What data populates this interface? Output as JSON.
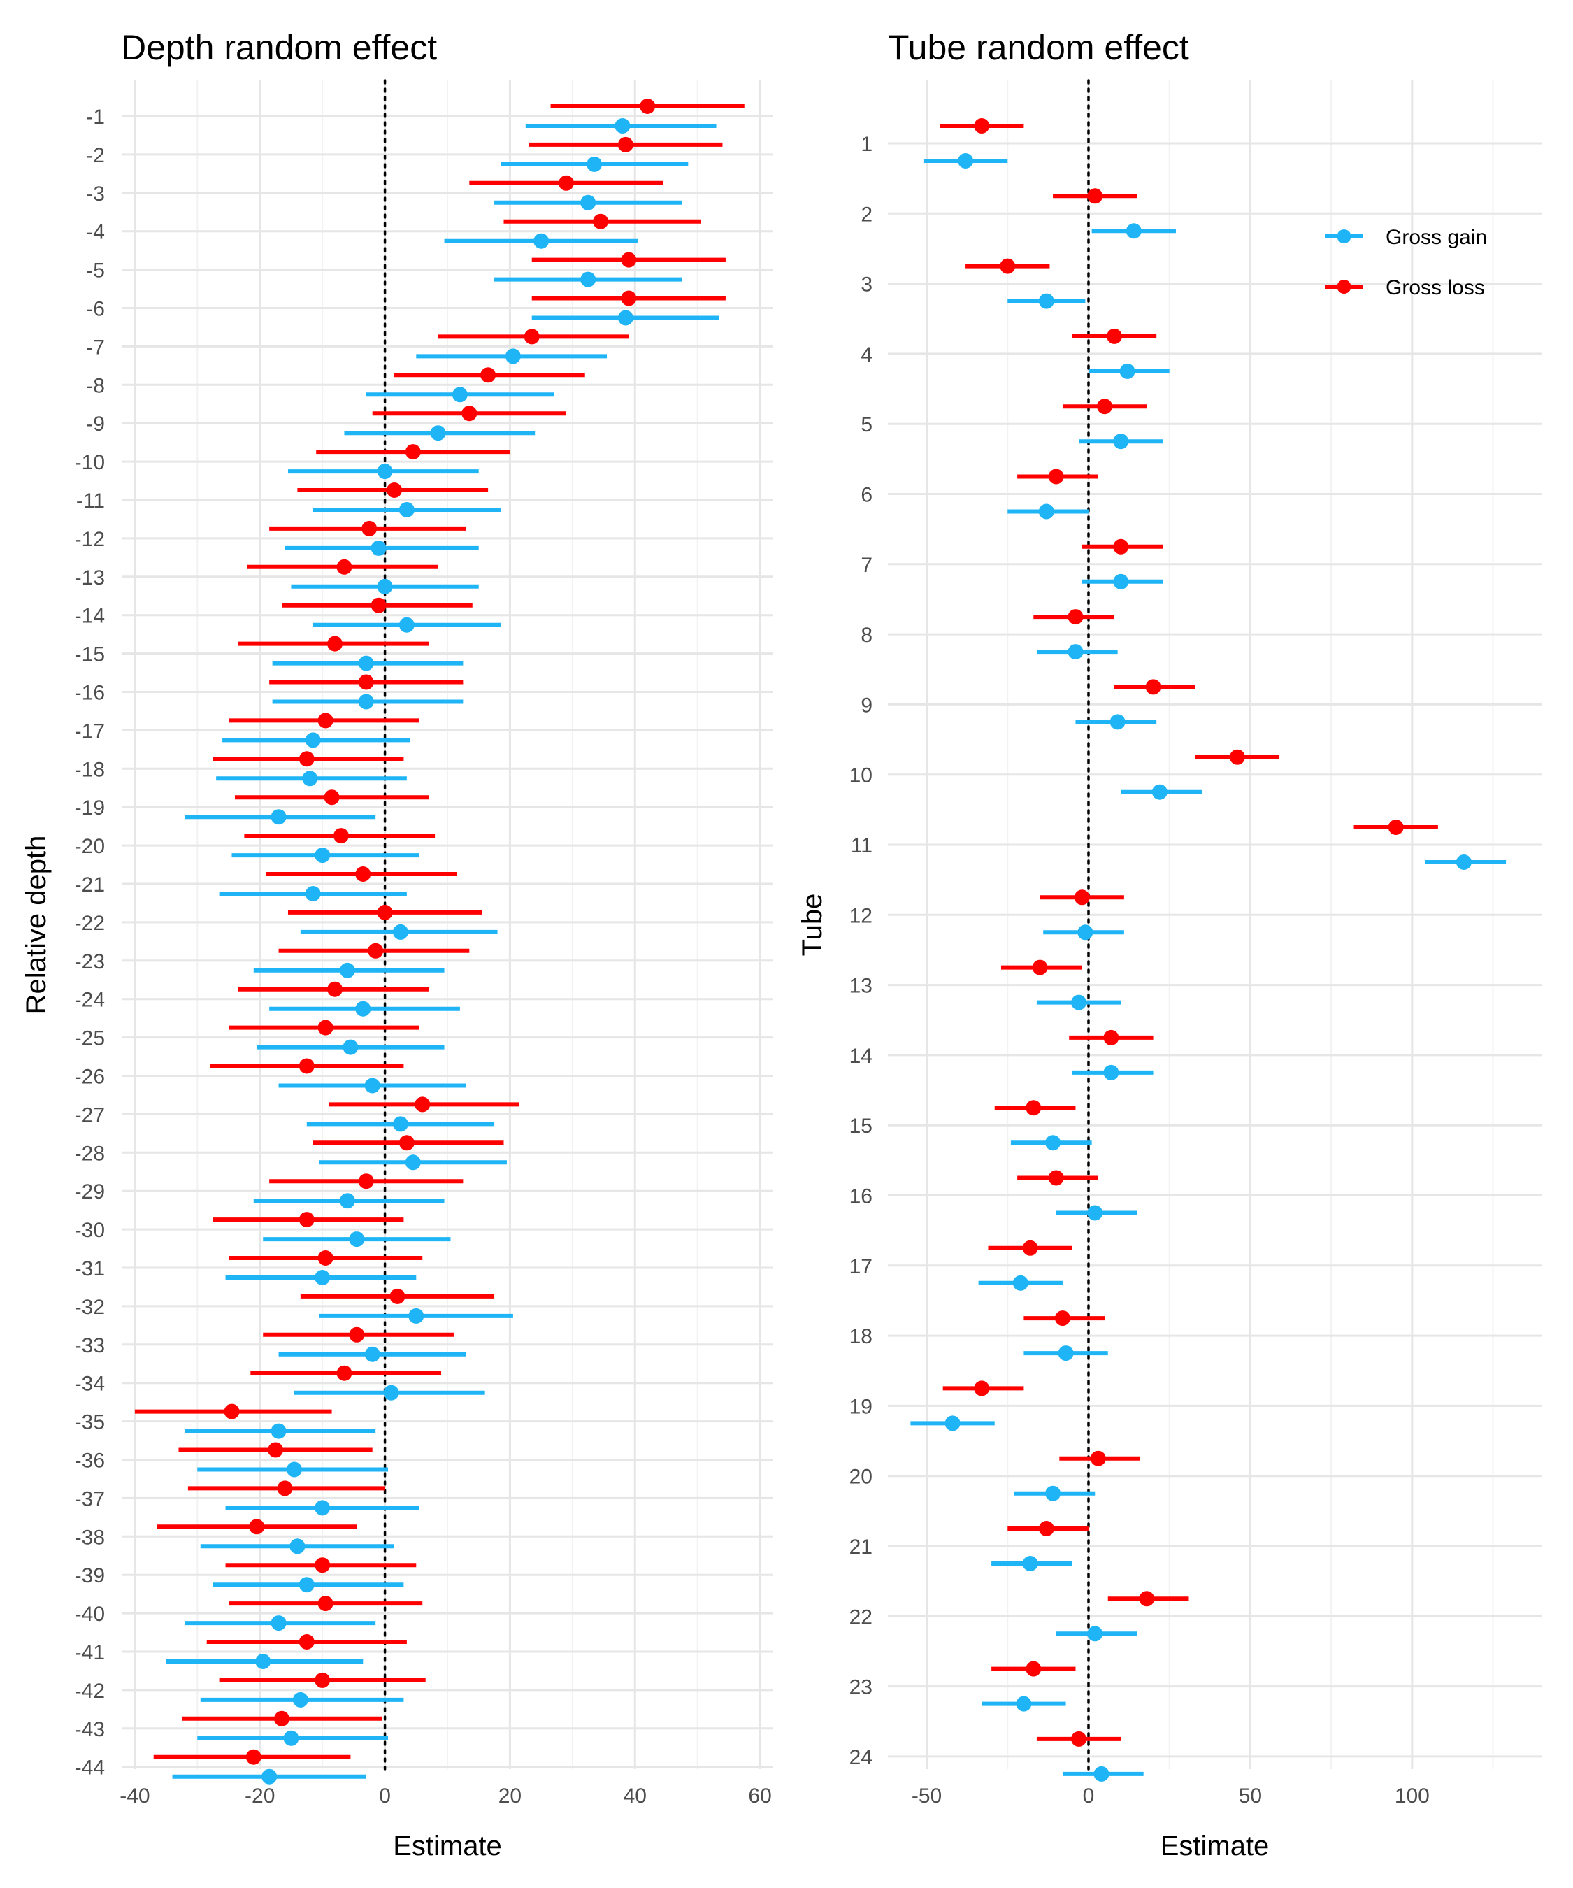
{
  "chart_data": [
    {
      "type": "forest",
      "title": "Depth random effect",
      "xlabel": "Estimate",
      "ylabel": "Relative depth",
      "xlim": [
        -42,
        62
      ],
      "xticks": [
        -40,
        -20,
        0,
        20,
        40,
        60
      ],
      "xtick_labels": [
        "-40",
        "-20",
        "0",
        "20",
        "40",
        "60"
      ],
      "reference_line": 0,
      "grid": true,
      "categories": [
        "-1",
        "-2",
        "-3",
        "-4",
        "-5",
        "-6",
        "-7",
        "-8",
        "-9",
        "-10",
        "-11",
        "-12",
        "-13",
        "-14",
        "-15",
        "-16",
        "-17",
        "-18",
        "-19",
        "-20",
        "-21",
        "-22",
        "-23",
        "-24",
        "-25",
        "-26",
        "-27",
        "-28",
        "-29",
        "-30",
        "-31",
        "-32",
        "-33",
        "-34",
        "-35",
        "-36",
        "-37",
        "-38",
        "-39",
        "-40",
        "-41",
        "-42",
        "-43",
        "-44"
      ],
      "series": [
        {
          "name": "Gross gain",
          "color": "#1eb4f5",
          "estimates": [
            38,
            33.5,
            32.5,
            25,
            32.5,
            38.5,
            20.5,
            12,
            8.5,
            0,
            3.5,
            -1,
            0,
            3.5,
            -3,
            -3,
            -11.5,
            -12,
            -17,
            -10,
            -11.5,
            2.5,
            -6,
            -3.5,
            -5.5,
            -2,
            2.5,
            4.5,
            -6,
            -4.5,
            -10,
            5,
            -2,
            1,
            -17,
            -14.5,
            -10,
            -14,
            -12.5,
            -17,
            -19.5,
            -13.5,
            -15,
            -18.5
          ],
          "lower": [
            22.5,
            18.5,
            17.5,
            9.5,
            17.5,
            23.5,
            5,
            -3,
            -6.5,
            -15.5,
            -11.5,
            -16,
            -15,
            -11.5,
            -18,
            -18,
            -26,
            -27,
            -32,
            -24.5,
            -26.5,
            -13.5,
            -21,
            -18.5,
            -20.5,
            -17,
            -12.5,
            -10.5,
            -21,
            -19.5,
            -25.5,
            -10.5,
            -17,
            -14.5,
            -32,
            -30,
            -25.5,
            -29.5,
            -27.5,
            -32,
            -35,
            -29.5,
            -30,
            -34
          ],
          "upper": [
            53,
            48.5,
            47.5,
            40.5,
            47.5,
            53.5,
            35.5,
            27,
            24,
            15,
            18.5,
            15,
            15,
            18.5,
            12.5,
            12.5,
            4,
            3.5,
            -1.5,
            5.5,
            3.5,
            18,
            9.5,
            12,
            9.5,
            13,
            17.5,
            19.5,
            9.5,
            10.5,
            5,
            20.5,
            13,
            16,
            -1.5,
            0.5,
            5.5,
            1.5,
            3,
            -1.5,
            -3.5,
            3,
            0.5,
            -3
          ]
        },
        {
          "name": "Gross loss",
          "color": "#ff0000",
          "estimates": [
            42,
            38.5,
            29,
            34.5,
            39,
            39,
            23.5,
            16.5,
            13.5,
            4.5,
            1.5,
            -2.5,
            -6.5,
            -1,
            -8,
            -3,
            -9.5,
            -12.5,
            -8.5,
            -7,
            -3.5,
            0,
            -1.5,
            -8,
            -9.5,
            -12.5,
            6,
            3.5,
            -3,
            -12.5,
            -9.5,
            2,
            -4.5,
            -6.5,
            -24.5,
            -17.5,
            -16,
            -20.5,
            -10,
            -9.5,
            -12.5,
            -10,
            -16.5,
            -21
          ],
          "lower": [
            26.5,
            23,
            13.5,
            19,
            23.5,
            23.5,
            8.5,
            1.5,
            -2,
            -11,
            -14,
            -18.5,
            -22,
            -16.5,
            -23.5,
            -18.5,
            -25,
            -27.5,
            -24,
            -22.5,
            -19,
            -15.5,
            -17,
            -23.5,
            -25,
            -28,
            -9,
            -11.5,
            -18.5,
            -27.5,
            -25,
            -13.5,
            -19.5,
            -21.5,
            -40,
            -33,
            -31.5,
            -36.5,
            -25.5,
            -25,
            -28.5,
            -26.5,
            -32.5,
            -37
          ],
          "upper": [
            57.5,
            54,
            44.5,
            50.5,
            54.5,
            54.5,
            39,
            32,
            29,
            20,
            16.5,
            13,
            8.5,
            14,
            7,
            12.5,
            5.5,
            3,
            7,
            8,
            11.5,
            15.5,
            13.5,
            7,
            5.5,
            3,
            21.5,
            19,
            12.5,
            3,
            6,
            17.5,
            11,
            9,
            -8.5,
            -2,
            0,
            -4.5,
            5,
            6,
            3.5,
            6.5,
            -0.5,
            -5.5
          ]
        }
      ]
    },
    {
      "type": "forest",
      "title": "Tube random effect",
      "xlabel": "Estimate",
      "ylabel": "Tube",
      "xlim": [
        -62,
        140
      ],
      "xticks": [
        -50,
        0,
        50,
        100
      ],
      "xtick_labels": [
        "-50",
        "0",
        "50",
        "100"
      ],
      "reference_line": 0,
      "grid": true,
      "legend_position": "top-right",
      "categories": [
        "1",
        "2",
        "3",
        "4",
        "5",
        "6",
        "7",
        "8",
        "9",
        "10",
        "11",
        "12",
        "13",
        "14",
        "15",
        "16",
        "17",
        "18",
        "19",
        "20",
        "21",
        "22",
        "23",
        "24"
      ],
      "series": [
        {
          "name": "Gross gain",
          "color": "#1eb4f5",
          "estimates": [
            -38,
            14,
            -13,
            12,
            10,
            -13,
            10,
            -4,
            9,
            22,
            116,
            -1,
            -3,
            7,
            -11,
            2,
            -21,
            -7,
            -42,
            -11,
            -18,
            2,
            -20,
            4
          ],
          "lower": [
            -51,
            1,
            -25,
            0,
            -3,
            -25,
            -2,
            -16,
            -4,
            10,
            104,
            -14,
            -16,
            -5,
            -24,
            -10,
            -34,
            -20,
            -55,
            -23,
            -30,
            -10,
            -33,
            -8
          ],
          "upper": [
            -25,
            27,
            -1,
            25,
            23,
            0,
            23,
            9,
            21,
            35,
            129,
            11,
            10,
            20,
            1,
            15,
            -8,
            6,
            -29,
            2,
            -5,
            15,
            -7,
            17
          ]
        },
        {
          "name": "Gross loss",
          "color": "#ff0000",
          "estimates": [
            -33,
            2,
            -25,
            8,
            5,
            -10,
            10,
            -4,
            20,
            46,
            95,
            -2,
            -15,
            7,
            -17,
            -10,
            -18,
            -8,
            -33,
            3,
            -13,
            18,
            -17,
            -3
          ],
          "lower": [
            -46,
            -11,
            -38,
            -5,
            -8,
            -22,
            -2,
            -17,
            8,
            33,
            82,
            -15,
            -27,
            -6,
            -29,
            -22,
            -31,
            -20,
            -45,
            -9,
            -25,
            6,
            -30,
            -16
          ],
          "upper": [
            -20,
            15,
            -12,
            21,
            18,
            3,
            23,
            8,
            33,
            59,
            108,
            11,
            -2,
            20,
            -4,
            3,
            -5,
            5,
            -20,
            16,
            0,
            31,
            -4,
            10
          ]
        }
      ]
    }
  ]
}
